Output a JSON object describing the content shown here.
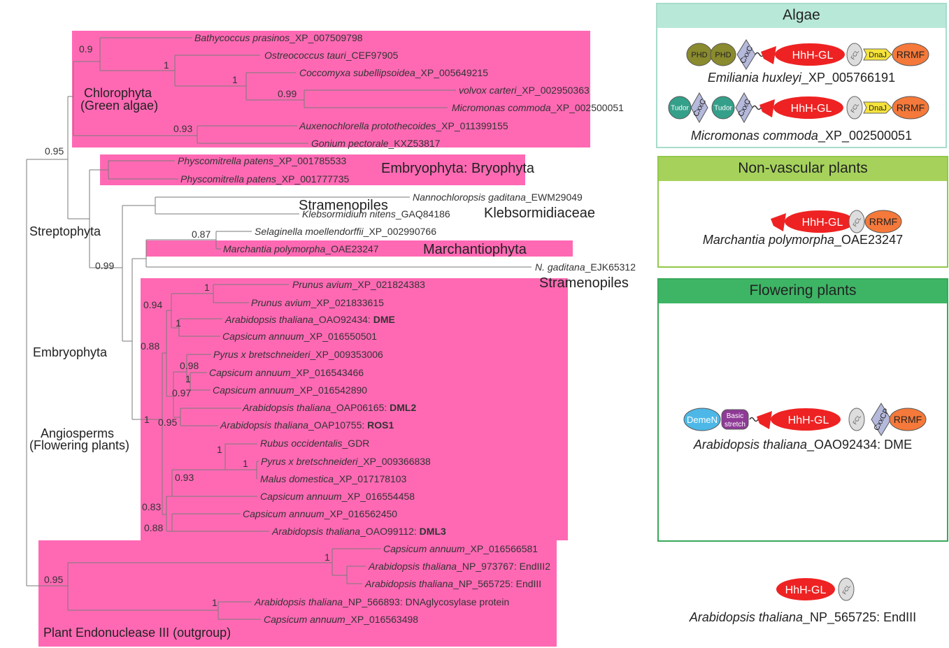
{
  "tree": {
    "clades": [
      {
        "id": "chlorophyta",
        "label": "Chlorophyta",
        "sublabel": "(Green algae)"
      },
      {
        "id": "bryophyta",
        "label": "Embryophyta: Bryophyta"
      },
      {
        "id": "stramenopiles1",
        "label": "Stramenopiles"
      },
      {
        "id": "klebsormidiaceae",
        "label": "Klebsormidiaceae"
      },
      {
        "id": "marchantiophyta",
        "label": "Marchantiophyta"
      },
      {
        "id": "stramenopiles2",
        "label": "Stramenopiles"
      },
      {
        "id": "streptophyta",
        "label": "Streptophyta"
      },
      {
        "id": "embryophyta",
        "label": "Embryophyta"
      },
      {
        "id": "angiosperms",
        "label": "Angiosperms",
        "sublabel": "(Flowering plants)"
      },
      {
        "id": "outgroup",
        "label": "Plant Endonuclease III (outgroup)"
      }
    ],
    "support_values": [
      "0.9",
      "1",
      "1",
      "0.99",
      "0.93",
      "0.95",
      "0.87",
      "0.99",
      "1",
      "0.94",
      "1",
      "0.88",
      "0.98",
      "1",
      "0.97",
      "1",
      "0.95",
      "1",
      "1",
      "0.93",
      "0.83",
      "0.88",
      "0.95",
      "1",
      "1"
    ],
    "leaves": [
      {
        "species": "Bathycoccus prasinos",
        "accession": "_XP_007509798"
      },
      {
        "species": "Ostreococcus tauri",
        "accession": "_CEF97905"
      },
      {
        "species": "Coccomyxa subellipsoidea",
        "accession": "_XP_005649215"
      },
      {
        "species": "volvox carteri",
        "accession": "_XP_002950363"
      },
      {
        "species": "Micromonas commoda",
        "accession": "_XP_002500051"
      },
      {
        "species": "Auxenochlorella protothecoides",
        "accession": "_XP_011399155"
      },
      {
        "species": "Gonium pectorale",
        "accession": "_KXZ53817"
      },
      {
        "species": "Physcomitrella patens",
        "accession": "_XP_001785533"
      },
      {
        "species": "Physcomitrella patens",
        "accession": "_XP_001777735"
      },
      {
        "species": "Nannochloropsis gaditana",
        "accession": "_EWM29049"
      },
      {
        "species": "Klebsormidium nitens",
        "accession": "_GAQ84186"
      },
      {
        "species": "Selaginella moellendorffii",
        "accession": "_XP_002990766"
      },
      {
        "species": "Marchantia polymorpha",
        "accession": "_OAE23247"
      },
      {
        "species": "N. gaditana",
        "accession": "_EJK65312"
      },
      {
        "species": "Prunus avium",
        "accession": "_XP_021824383"
      },
      {
        "species": "Prunus avium",
        "accession": "_XP_021833615"
      },
      {
        "species": "Arabidopsis thaliana",
        "accession": "_OAO92434: ",
        "bold": "DME"
      },
      {
        "species": "Capsicum annuum",
        "accession": "_XP_016550501"
      },
      {
        "species": "Pyrus x bretschneideri",
        "accession": "_XP_009353006"
      },
      {
        "species": "Capsicum annuum",
        "accession": "_XP_016543466"
      },
      {
        "species": "Capsicum annuum",
        "accession": "_XP_016542890"
      },
      {
        "species": "Arabidopsis thaliana",
        "accession": "_OAP06165: ",
        "bold": "DML2"
      },
      {
        "species": "Arabidopsis thaliana",
        "accession": "_OAP10755: ",
        "bold": "ROS1"
      },
      {
        "species": "Rubus occidentalis",
        "accession": "_GDR"
      },
      {
        "species": "Pyrus x bretschneideri",
        "accession": "_XP_009366838"
      },
      {
        "species": "Malus domestica",
        "accession": "_XP_017178103"
      },
      {
        "species": "Capsicum annuum",
        "accession": "_XP_016554458"
      },
      {
        "species": "Capsicum annuum",
        "accession": "_XP_016562450"
      },
      {
        "species": "Arabidopsis thaliana",
        "accession": "_OAO99112: ",
        "bold": "DML3"
      },
      {
        "species": "Capsicum annuum",
        "accession": "_XP_016566581"
      },
      {
        "species": "Arabidopsis thaliana",
        "accession": "_NP_973767: EndIII2"
      },
      {
        "species": "Arabidopsis thaliana",
        "accession": "_NP_565725: EndIII"
      },
      {
        "species": "Arabidopsis thaliana",
        "accession": "_NP_566893: DNAglycosylase protein"
      },
      {
        "species": "Capsicum annuum",
        "accession": "_XP_016563498"
      }
    ]
  },
  "domains": {
    "phd": "PHD",
    "cxxc": "CxxC",
    "hhh": "HhH-GL",
    "fcl": "FCL",
    "dnaj": "DnaJ",
    "rrmf": "RRMF",
    "tudor": "Tudor",
    "demen": "DemeN",
    "basic1": "Basic",
    "basic2": "stretch",
    "cxxcp": "CxxCP"
  },
  "panels": {
    "algae": {
      "title": "Algae",
      "proteins": [
        {
          "species": "Emiliania huxleyi",
          "accession": "_XP_005766191"
        },
        {
          "species": "Micromonas commoda",
          "accession": "_XP_002500051"
        }
      ]
    },
    "nonvascular": {
      "title": "Non-vascular plants",
      "proteins": [
        {
          "species": "Marchantia polymorpha",
          "accession": "_OAE23247"
        }
      ]
    },
    "flowering": {
      "title": "Flowering plants",
      "proteins": [
        {
          "species": "Arabidopsis thaliana",
          "accession": "_OAO92434: DME"
        }
      ]
    },
    "endiii": {
      "proteins": [
        {
          "species": "Arabidopsis thaliana",
          "accession": "_NP_565725: EndIII"
        }
      ]
    }
  },
  "colors": {
    "clade_fill": "#ff69b4",
    "branch": "#7a7a7a",
    "hhh": "#ee2222",
    "phd": "#8a8a2e",
    "cxxc": "#b5b9db",
    "fcl": "#dddddd",
    "dnaj": "#f5e33a",
    "rrmf": "#f5793a",
    "tudor": "#35a08a",
    "demen": "#4db8e8",
    "basic": "#8e3a96",
    "algae_border": "#a8dccc",
    "algae_head": "#b8e8d8",
    "nonvascular_border": "#92c84a",
    "nonvascular_head": "#a6d25c",
    "flowering_border": "#3aa85a",
    "flowering_head": "#3db565"
  }
}
